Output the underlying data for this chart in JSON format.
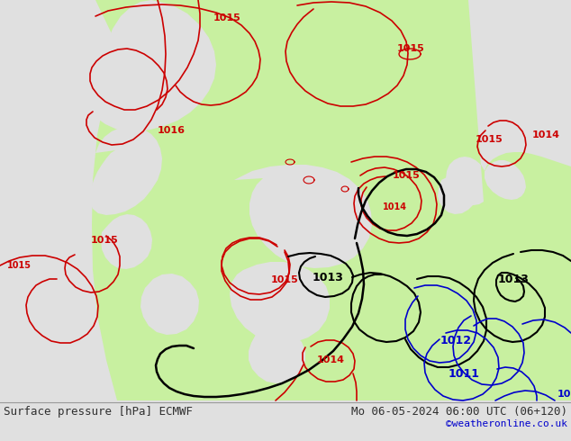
{
  "title_left": "Surface pressure [hPa] ECMWF",
  "title_right": "Mo 06-05-2024 06:00 UTC (06+120)",
  "credit": "©weatheronline.co.uk",
  "bg_color": "#e0e0e0",
  "land_green_color": "#c8f0a0",
  "sea_color": "#d8d8d8",
  "coast_color": "#a0a0a0",
  "footer_color": "#303030",
  "credit_color": "#0000cc",
  "font_size_footer": 9,
  "red": "#cc0000",
  "black": "#000000",
  "blue": "#0000cc"
}
